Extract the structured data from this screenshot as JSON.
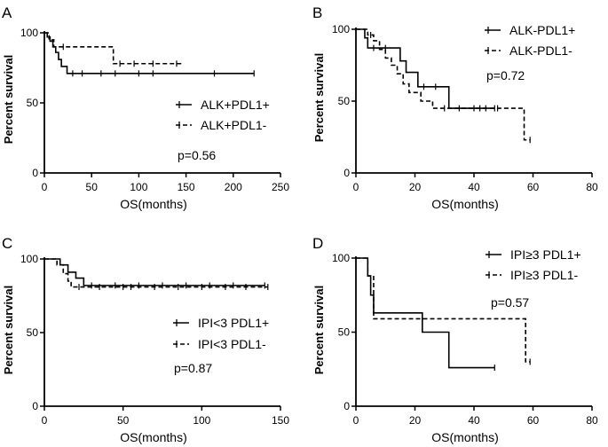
{
  "chart_data": [
    {
      "panel_label": "A",
      "type": "line",
      "subtype": "kaplan-meier",
      "xlabel": "OS(months)",
      "ylabel": "Percent survival",
      "xlim": [
        0,
        250
      ],
      "ylim": [
        0,
        100
      ],
      "xticks": [
        0,
        50,
        100,
        150,
        200,
        250
      ],
      "yticks": [
        0,
        50,
        100
      ],
      "pvalue": "p=0.56",
      "series": [
        {
          "name": "ALK+PDL1+",
          "style": "solid",
          "steps": [
            [
              0,
              100
            ],
            [
              3,
              97
            ],
            [
              6,
              94
            ],
            [
              9,
              90
            ],
            [
              12,
              86
            ],
            [
              15,
              81
            ],
            [
              18,
              76
            ],
            [
              24,
              71
            ],
            [
              222,
              71
            ]
          ],
          "censor": [
            [
              30,
              71
            ],
            [
              40,
              71
            ],
            [
              60,
              71
            ],
            [
              75,
              71
            ],
            [
              100,
              71
            ],
            [
              115,
              71
            ],
            [
              180,
              71
            ],
            [
              222,
              71
            ]
          ]
        },
        {
          "name": "ALK+PDL1-",
          "style": "dashed",
          "steps": [
            [
              0,
              100
            ],
            [
              5,
              95
            ],
            [
              10,
              90
            ],
            [
              72,
              90
            ],
            [
              73,
              78
            ],
            [
              145,
              78
            ]
          ],
          "censor": [
            [
              20,
              90
            ],
            [
              80,
              78
            ],
            [
              95,
              78
            ],
            [
              115,
              78
            ],
            [
              140,
              78
            ]
          ]
        }
      ]
    },
    {
      "panel_label": "B",
      "type": "line",
      "subtype": "kaplan-meier",
      "xlabel": "OS(months)",
      "ylabel": "Percent survival",
      "xlim": [
        0,
        80
      ],
      "ylim": [
        0,
        100
      ],
      "xticks": [
        0,
        20,
        40,
        60,
        80
      ],
      "yticks": [
        0,
        50,
        100
      ],
      "pvalue": "p=0.72",
      "series": [
        {
          "name": "ALK-PDL1+",
          "style": "solid",
          "steps": [
            [
              0,
              100
            ],
            [
              3,
              94
            ],
            [
              4,
              87
            ],
            [
              14,
              87
            ],
            [
              15,
              78
            ],
            [
              17,
              70
            ],
            [
              21,
              60
            ],
            [
              31,
              60
            ],
            [
              31.5,
              45
            ],
            [
              47,
              45
            ]
          ],
          "censor": [
            [
              6,
              87
            ],
            [
              10,
              87
            ],
            [
              23,
              60
            ],
            [
              27,
              60
            ],
            [
              40,
              45
            ],
            [
              44,
              45
            ],
            [
              47,
              45
            ]
          ]
        },
        {
          "name": "ALK-PDL1-",
          "style": "dashed",
          "steps": [
            [
              0,
              100
            ],
            [
              4,
              96
            ],
            [
              6,
              92
            ],
            [
              8,
              86
            ],
            [
              10,
              80
            ],
            [
              12,
              75
            ],
            [
              14,
              69
            ],
            [
              16,
              62
            ],
            [
              18,
              56
            ],
            [
              22,
              50
            ],
            [
              26,
              45
            ],
            [
              56,
              45
            ],
            [
              57,
              23
            ],
            [
              59,
              23
            ]
          ],
          "censor": [
            [
              5,
              96
            ],
            [
              30,
              45
            ],
            [
              35,
              45
            ],
            [
              42,
              45
            ],
            [
              48,
              45
            ],
            [
              59,
              23
            ]
          ]
        }
      ]
    },
    {
      "panel_label": "C",
      "type": "line",
      "subtype": "kaplan-meier",
      "xlabel": "OS(months)",
      "ylabel": "Percent survival",
      "xlim": [
        0,
        150
      ],
      "ylim": [
        0,
        100
      ],
      "xticks": [
        0,
        50,
        100,
        150
      ],
      "yticks": [
        0,
        50,
        100
      ],
      "pvalue": "p=0.87",
      "series": [
        {
          "name": "IPI<3 PDL1+",
          "style": "solid",
          "steps": [
            [
              0,
              100
            ],
            [
              10,
              96
            ],
            [
              15,
              91
            ],
            [
              20,
              87
            ],
            [
              25,
              82
            ],
            [
              140,
              82
            ]
          ],
          "censor": [
            [
              30,
              82
            ],
            [
              45,
              82
            ],
            [
              60,
              82
            ],
            [
              75,
              82
            ],
            [
              90,
              82
            ],
            [
              105,
              82
            ],
            [
              120,
              82
            ],
            [
              140,
              82
            ]
          ]
        },
        {
          "name": "IPI<3 PDL1-",
          "style": "dashed",
          "steps": [
            [
              0,
              100
            ],
            [
              8,
              96
            ],
            [
              12,
              90
            ],
            [
              15,
              85
            ],
            [
              17,
              81
            ],
            [
              142,
              81
            ]
          ],
          "censor": [
            [
              22,
              81
            ],
            [
              35,
              81
            ],
            [
              50,
              81
            ],
            [
              55,
              81
            ],
            [
              70,
              81
            ],
            [
              85,
              81
            ],
            [
              100,
              81
            ],
            [
              115,
              81
            ],
            [
              128,
              81
            ],
            [
              142,
              81
            ]
          ]
        }
      ]
    },
    {
      "panel_label": "D",
      "type": "line",
      "subtype": "kaplan-meier",
      "xlabel": "OS(months)",
      "ylabel": "Percent survival",
      "xlim": [
        0,
        80
      ],
      "ylim": [
        0,
        100
      ],
      "xticks": [
        0,
        20,
        40,
        60,
        80
      ],
      "yticks": [
        0,
        50,
        100
      ],
      "pvalue": "p=0.57",
      "series": [
        {
          "name": "IPI≥3 PDL1+",
          "style": "solid",
          "steps": [
            [
              0,
              100
            ],
            [
              4,
              88
            ],
            [
              5,
              75
            ],
            [
              6,
              63
            ],
            [
              22,
              63
            ],
            [
              22.5,
              50
            ],
            [
              31,
              50
            ],
            [
              31.5,
              26
            ],
            [
              47,
              26
            ]
          ],
          "censor": [
            [
              47,
              26
            ]
          ]
        },
        {
          "name": "IPI≥3 PDL1-",
          "style": "dashed",
          "steps": [
            [
              0,
              100
            ],
            [
              3,
              100
            ],
            [
              4,
              88
            ],
            [
              6,
              59
            ],
            [
              57,
              59
            ],
            [
              57.5,
              30
            ],
            [
              59,
              30
            ]
          ],
          "censor": [
            [
              59,
              30
            ]
          ]
        }
      ]
    }
  ]
}
